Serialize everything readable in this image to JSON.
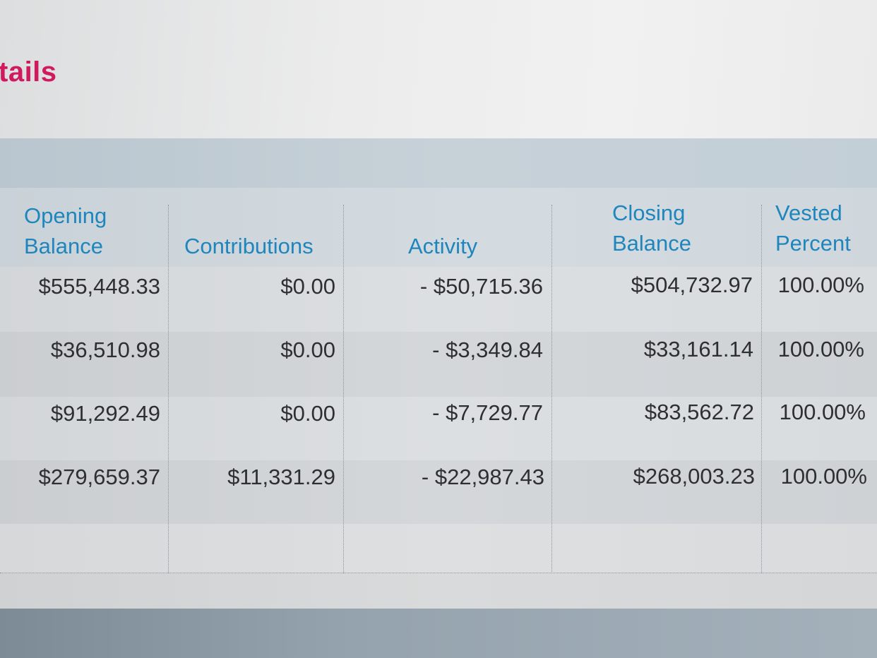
{
  "section": {
    "title": "tails",
    "title_color": "#d0195e"
  },
  "table": {
    "header_color": "#1f86bd",
    "headers": [
      "Opening\nBalance",
      "Contributions",
      "Activity",
      "Closing\nBalance",
      "Vested\nPercent"
    ],
    "rows": [
      {
        "opening": "$555,448.33",
        "contributions": "$0.00",
        "activity": "- $50,715.36",
        "closing": "$504,732.97",
        "vested": "100.00%"
      },
      {
        "opening": "$36,510.98",
        "contributions": "$0.00",
        "activity": "- $3,349.84",
        "closing": "$33,161.14",
        "vested": "100.00%"
      },
      {
        "opening": "$91,292.49",
        "contributions": "$0.00",
        "activity": "- $7,729.77",
        "closing": "$83,562.72",
        "vested": "100.00%"
      },
      {
        "opening": "$279,659.37",
        "contributions": "$11,331.29",
        "activity": "- $22,987.43",
        "closing": "$268,003.23",
        "vested": "100.00%"
      }
    ]
  }
}
